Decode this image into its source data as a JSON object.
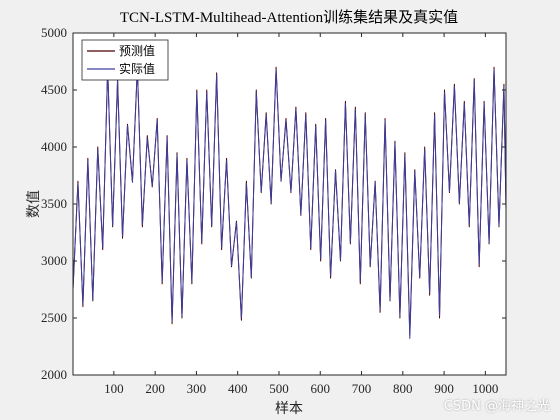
{
  "colors": {
    "figure_bg": "#f0f0f0",
    "axes_bg": "#ffffff",
    "predicted": "#4d0000",
    "actual": "#3d3d9e",
    "axis": "#262626"
  },
  "watermark": "CSDN @海神之光",
  "chart_data": {
    "type": "line",
    "title": "TCN-LSTM-Multihead-Attention训练集结果及真实值",
    "xlabel": "样本",
    "ylabel": "数值",
    "xlim": [
      1,
      1050
    ],
    "ylim": [
      2000,
      5000
    ],
    "xticks": [
      100,
      200,
      300,
      400,
      500,
      600,
      700,
      800,
      900,
      1000
    ],
    "yticks": [
      2000,
      2500,
      3000,
      3500,
      4000,
      4500,
      5000
    ],
    "grid": false,
    "legend": {
      "location": "top-left",
      "entries": [
        "预测值",
        "实际值"
      ]
    },
    "n_samples": 1050,
    "series": [
      {
        "name": "预测值",
        "x_step": 12,
        "values": [
          2750,
          3700,
          2600,
          3900,
          2650,
          4000,
          3100,
          4700,
          3300,
          4600,
          3200,
          4200,
          3700,
          4700,
          3300,
          4100,
          3650,
          4250,
          2800,
          4100,
          2450,
          3950,
          2500,
          3900,
          2800,
          4500,
          3150,
          4500,
          3300,
          4650,
          3100,
          3900,
          2950,
          3350,
          2480,
          3700,
          2850,
          4500,
          3600,
          4300,
          3500,
          4700,
          3700,
          4250,
          3600,
          4350,
          3400,
          4300,
          3100,
          4200,
          3000,
          4250,
          2850,
          3800,
          3000,
          4400,
          3150,
          4350,
          2800,
          4300,
          2950,
          3700,
          2550,
          4250,
          2650,
          4050,
          2500,
          3950,
          2350,
          3800,
          2850,
          4000,
          2700,
          4300,
          2500,
          4500,
          3600,
          4550,
          3500,
          4400,
          3300,
          4600,
          2950,
          4400,
          3150,
          4700,
          3300,
          4550,
          3450
        ]
      },
      {
        "name": "实际值",
        "x_step": 12,
        "values": [
          2760,
          3680,
          2620,
          3880,
          2660,
          3980,
          3120,
          4680,
          3310,
          4580,
          3220,
          4190,
          3690,
          4690,
          3320,
          4080,
          3660,
          4230,
          2820,
          4080,
          2470,
          3930,
          2520,
          3880,
          2820,
          4480,
          3170,
          4480,
          3310,
          4630,
          3120,
          3880,
          2960,
          3340,
          2500,
          3680,
          2860,
          4480,
          3610,
          4280,
          3510,
          4680,
          3710,
          4230,
          3610,
          4330,
          3410,
          4280,
          3120,
          4180,
          3020,
          4230,
          2870,
          3790,
          3010,
          4380,
          3160,
          4330,
          2820,
          4280,
          2960,
          3690,
          2570,
          4230,
          2660,
          4030,
          2520,
          3930,
          2320,
          3790,
          2860,
          3980,
          2720,
          4280,
          2520,
          4480,
          3610,
          4530,
          3510,
          4380,
          3320,
          4580,
          2970,
          4380,
          3160,
          4680,
          3310,
          4530,
          3460
        ]
      }
    ]
  }
}
